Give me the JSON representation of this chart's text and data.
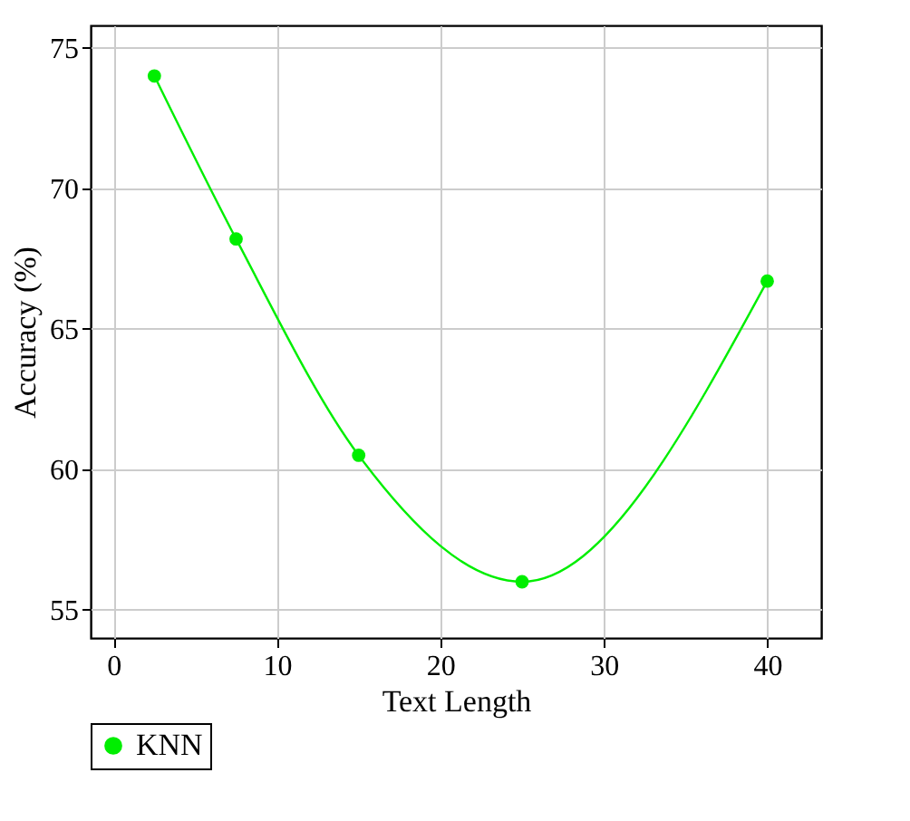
{
  "chart_data": {
    "type": "line",
    "xlabel": "Text Length",
    "ylabel": "Accuracy (%)",
    "x": [
      2.5,
      7.5,
      15,
      25,
      40
    ],
    "series": [
      {
        "name": "KNN",
        "color": "#00ee00",
        "values": [
          74.0,
          68.2,
          60.5,
          56.0,
          66.7
        ]
      }
    ],
    "xlim": [
      -1.4,
      43.3
    ],
    "ylim": [
      54,
      75.8
    ],
    "xticks": [
      0,
      10,
      20,
      30,
      40
    ],
    "yticks": [
      55,
      60,
      65,
      70,
      75
    ],
    "grid": true,
    "legend": "bottom",
    "marker": "circle",
    "line_style": "solid"
  }
}
